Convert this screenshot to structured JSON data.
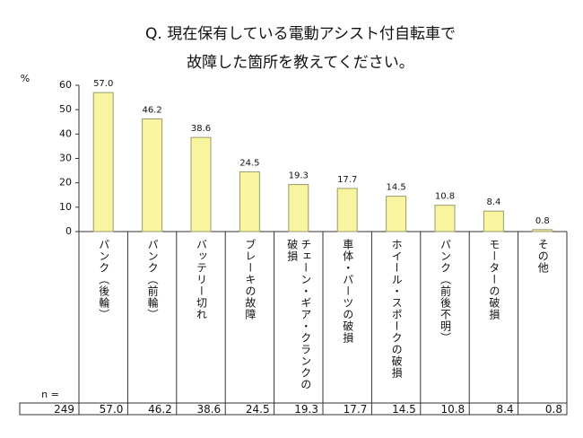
{
  "chart_data": {
    "type": "bar",
    "title": [
      "Q. 現在保有している電動アシスト付自転車で",
      "故障した箇所を教えてください。"
    ],
    "y_label": "%",
    "categories": [
      "パンク（後輪）",
      "パンク（前輪）",
      "バッテリー切れ",
      "ブレーキの故障",
      "チェーン・ギア・クランクの破損",
      "車体・パーツの破損",
      "ホイール・スポークの破損",
      "パンク（前後不明）",
      "モーターの破損",
      "その他"
    ],
    "values": [
      57.0,
      46.2,
      38.6,
      24.5,
      19.3,
      17.7,
      14.5,
      10.8,
      8.4,
      0.8
    ],
    "value_labels": [
      "57.0",
      "46.2",
      "38.6",
      "24.5",
      "19.3",
      "17.7",
      "14.5",
      "10.8",
      "8.4",
      "0.8"
    ],
    "color": "#f8f4a0",
    "ylim": [
      0,
      60
    ],
    "yticks": [
      0,
      10,
      20,
      30,
      40,
      50,
      60
    ],
    "grid": false,
    "table": {
      "n_label": "n =",
      "n": 249
    }
  }
}
